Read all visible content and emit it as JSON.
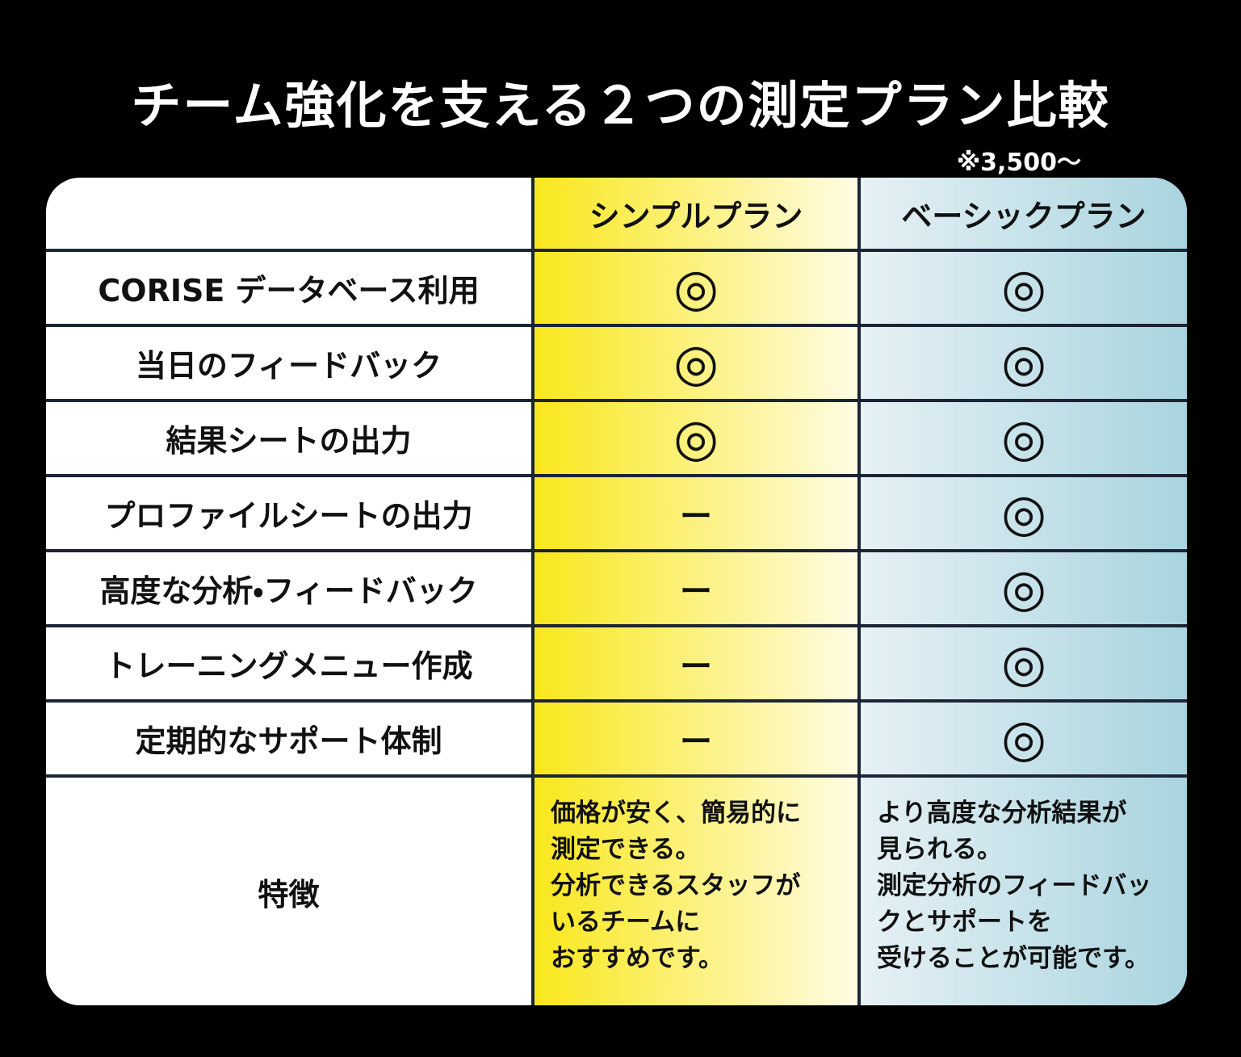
{
  "header": {
    "title": "チーム強化を支える２つの測定プラン比較",
    "note": "※3,500～"
  },
  "table": {
    "columns": [
      "シンプルプラン",
      "ベーシックプラン"
    ],
    "rows": [
      {
        "label": "CORISE データベース利用",
        "cells": [
          "◎",
          "◎"
        ]
      },
      {
        "label": "当日のフィードバック",
        "cells": [
          "◎",
          "◎"
        ]
      },
      {
        "label": "結果シートの出力",
        "cells": [
          "◎",
          "◎"
        ]
      },
      {
        "label": "プロファイルシートの出力",
        "cells": [
          "ー",
          "◎"
        ]
      },
      {
        "label": "高度な分析・フィードバック",
        "cells": [
          "ー",
          "◎"
        ]
      },
      {
        "label": "トレーニングメニュー作成",
        "cells": [
          "ー",
          "◎"
        ]
      },
      {
        "label": "定期的なサポート体制",
        "cells": [
          "ー",
          "◎"
        ]
      }
    ],
    "features": {
      "label": "特徴",
      "cells": [
        [
          "価格が安く、簡易的に",
          "測定できる。",
          "分析できるスタッフが",
          "いるチームに",
          "おすすめです。"
        ],
        [
          "より高度な分析結果が",
          "見られる。",
          "測定分析のフィードバックとサポートを",
          "受けることが可能です。"
        ]
      ]
    }
  }
}
